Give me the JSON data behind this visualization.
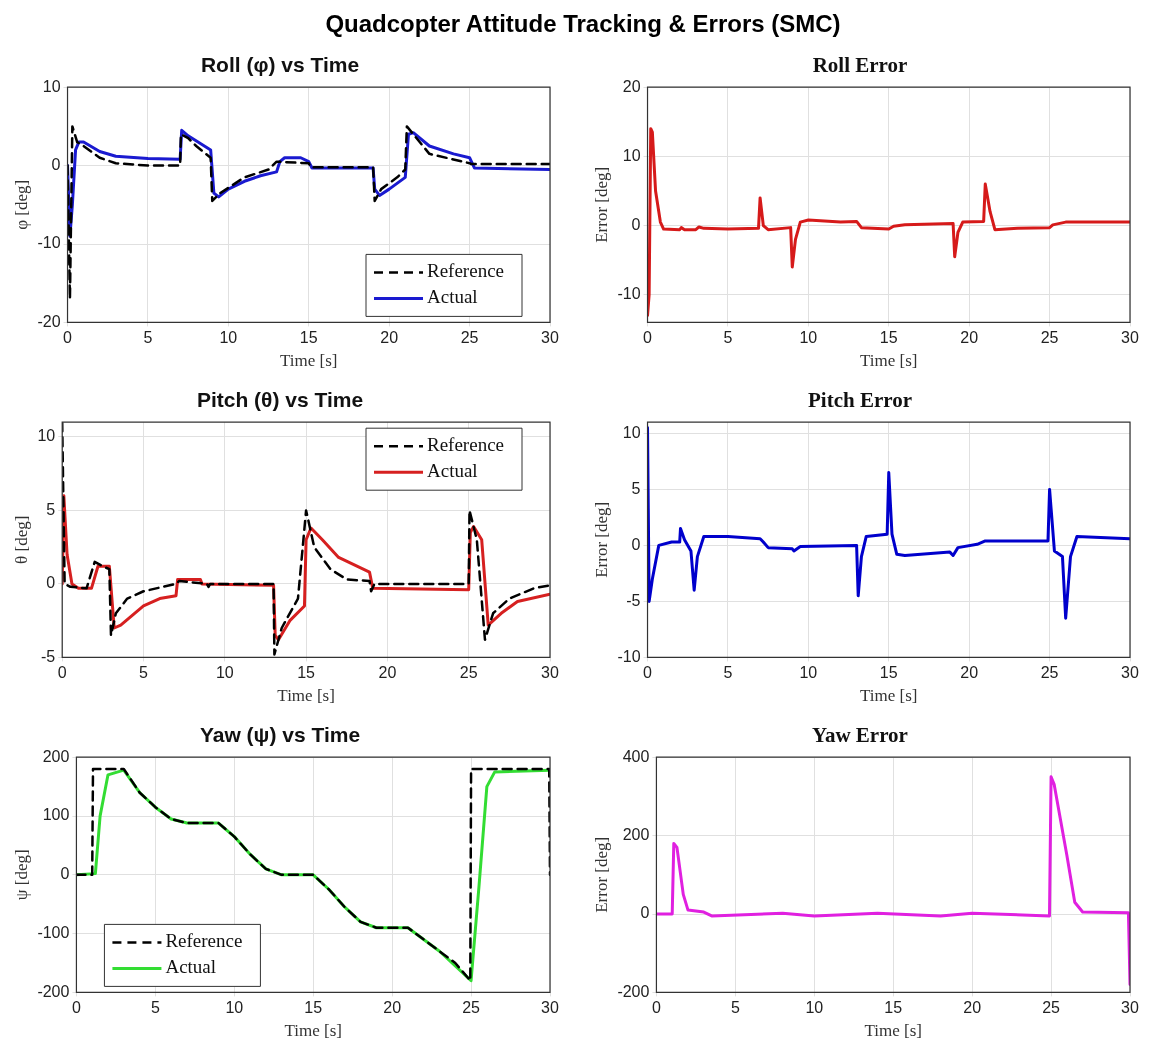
{
  "chart_data": [
    {
      "type": "other",
      "title": "Quadcopter Attitude Tracking & Errors (SMC)"
    },
    {
      "type": "line",
      "title": "Roll (φ) vs Time",
      "xlabel": "Time [s]",
      "ylabel": "φ [deg]",
      "xlim": [
        0,
        30
      ],
      "xticks": [
        0,
        5,
        10,
        15,
        20,
        25,
        30
      ],
      "ylim": [
        -20,
        10
      ],
      "yticks": [
        -20,
        -10,
        0,
        10
      ],
      "grid": true,
      "legend": "bottom right",
      "marker": "none",
      "series": [
        {
          "name": "Reference",
          "color": "#000000",
          "line_style": "dashed",
          "x": [
            0,
            0.15,
            0.3,
            0.6,
            1,
            2,
            3,
            5,
            7,
            7.05,
            7.5,
            8,
            8.9,
            9,
            9.5,
            11,
            12.5,
            13,
            15,
            15.1,
            19,
            19.1,
            19.5,
            20.5,
            21,
            21.1,
            21.5,
            22.5,
            25,
            25.1,
            30
          ],
          "values": [
            0,
            -17,
            5,
            3,
            2.5,
            1,
            0.3,
            0,
            0,
            4,
            3.5,
            2.5,
            1,
            -4.5,
            -3.5,
            -1.5,
            -0.5,
            0.5,
            0.3,
            -0.2,
            -0.2,
            -4.5,
            -3,
            -1.5,
            -0.5,
            5,
            4,
            1.5,
            0.3,
            0.2,
            0.2
          ]
        },
        {
          "name": "Actual",
          "color": "#1a1ad0",
          "line_style": "solid",
          "x": [
            0,
            0.15,
            0.3,
            0.5,
            0.7,
            1,
            2,
            3,
            5,
            7,
            7.1,
            7.5,
            8.9,
            9.1,
            9.4,
            10,
            11,
            12,
            13,
            13.2,
            13.5,
            14.5,
            15,
            15.2,
            19,
            19.1,
            19.4,
            20,
            21,
            21.2,
            21.5,
            22.5,
            24,
            25,
            25.3,
            30
          ],
          "values": [
            0,
            -9,
            -5,
            2,
            3,
            3,
            1.8,
            1.2,
            0.9,
            0.8,
            4.5,
            3.8,
            2,
            -3.5,
            -4,
            -3,
            -2,
            -1.3,
            -0.8,
            0.5,
            1,
            1,
            0.5,
            -0.3,
            -0.3,
            -3,
            -3.8,
            -3,
            -1.5,
            4,
            4.2,
            2.5,
            1.5,
            1,
            -0.3,
            -0.5
          ]
        }
      ]
    },
    {
      "type": "line",
      "title": "Roll Error",
      "xlabel": "Time [s]",
      "ylabel": "Error [deg]",
      "xlim": [
        0,
        30
      ],
      "xticks": [
        0,
        5,
        10,
        15,
        20,
        25,
        30
      ],
      "ylim": [
        -14,
        20
      ],
      "yticks": [
        -10,
        0,
        10,
        20
      ],
      "grid": true,
      "marker": "none",
      "series": [
        {
          "color": "#d61a1a",
          "line_style": "solid",
          "x": [
            0,
            0.1,
            0.2,
            0.3,
            0.5,
            0.8,
            1,
            2,
            2.1,
            2.3,
            3,
            3.2,
            3.5,
            5,
            6.9,
            7,
            7.2,
            7.5,
            8.9,
            9,
            9.2,
            9.5,
            10,
            12,
            13,
            13.3,
            15,
            15.3,
            16,
            19,
            19.1,
            19.3,
            19.6,
            20.9,
            21,
            21.3,
            21.6,
            23,
            25,
            25.2,
            26,
            30
          ],
          "values": [
            -13,
            -10,
            14,
            13.5,
            5,
            0.5,
            -0.5,
            -0.6,
            -0.3,
            -0.6,
            -0.6,
            -0.2,
            -0.4,
            -0.5,
            -0.4,
            4,
            0,
            -0.6,
            -0.3,
            -6,
            -2,
            0.5,
            0.8,
            0.5,
            0.6,
            -0.3,
            -0.5,
            -0.1,
            0.1,
            0.3,
            -4.5,
            -1,
            0.5,
            0.6,
            6,
            2,
            -0.6,
            -0.4,
            -0.3,
            0.1,
            0.5,
            0.5
          ]
        }
      ]
    },
    {
      "type": "line",
      "title": "Pitch (θ) vs Time",
      "xlabel": "Time [s]",
      "ylabel": "θ [deg]",
      "xlim": [
        0,
        30
      ],
      "xticks": [
        0,
        5,
        10,
        15,
        20,
        25,
        30
      ],
      "ylim": [
        -5,
        11
      ],
      "yticks": [
        -5,
        0,
        5,
        10
      ],
      "grid": true,
      "legend": "top right",
      "marker": "none",
      "series": [
        {
          "name": "Reference",
          "color": "#000000",
          "line_style": "dashed",
          "x": [
            0,
            0.15,
            0.5,
            1.5,
            2,
            2.5,
            2.9,
            3,
            3.3,
            4,
            5,
            7,
            7.2,
            8.9,
            9,
            9.1,
            13,
            13.05,
            13.5,
            14.5,
            15,
            15.5,
            16.5,
            17.5,
            18.9,
            19,
            19.2,
            25,
            25.05,
            25.5,
            26,
            26.5,
            27.5,
            29,
            30
          ],
          "values": [
            11,
            0,
            -0.2,
            -0.3,
            1.5,
            1.2,
            1,
            -3.5,
            -2,
            -1,
            -0.5,
            0,
            0.2,
            0,
            -0.2,
            0,
            0,
            -4.8,
            -3,
            -1,
            5,
            2.5,
            1,
            0.3,
            0.2,
            -0.5,
            0,
            0,
            5,
            3,
            -3.8,
            -2,
            -1,
            -0.3,
            -0.1
          ]
        },
        {
          "name": "Actual",
          "color": "#d62020",
          "line_style": "solid",
          "x": [
            0,
            0.1,
            0.3,
            0.6,
            1,
            1.8,
            2.2,
            2.9,
            3.2,
            3.6,
            5,
            6,
            7,
            7.1,
            8.5,
            8.6,
            13,
            13.1,
            13.3,
            14,
            14.9,
            15,
            15.3,
            16,
            17,
            18.9,
            19.1,
            25,
            25.1,
            25.3,
            25.8,
            26.2,
            27,
            28,
            30
          ],
          "values": [
            0,
            6,
            2,
            0,
            -0.3,
            -0.3,
            1.2,
            1.2,
            -3,
            -2.8,
            -1.5,
            -1,
            -0.8,
            0.3,
            0.3,
            0,
            -0.1,
            -3.5,
            -3.8,
            -2.5,
            -1.5,
            3,
            3.8,
            3,
            1.8,
            0.8,
            -0.3,
            -0.4,
            3.5,
            3.9,
            3,
            -2.8,
            -2,
            -1.2,
            -0.7
          ]
        }
      ]
    },
    {
      "type": "line",
      "title": "Pitch Error",
      "xlabel": "Time [s]",
      "ylabel": "Error [deg]",
      "xlim": [
        0,
        30
      ],
      "xticks": [
        0,
        5,
        10,
        15,
        20,
        25,
        30
      ],
      "ylim": [
        -10,
        11
      ],
      "yticks": [
        -10,
        -5,
        0,
        5,
        10
      ],
      "grid": true,
      "marker": "none",
      "series": [
        {
          "color": "#0000cc",
          "line_style": "solid",
          "x": [
            0,
            0.1,
            0.3,
            0.7,
            1.5,
            2,
            2.05,
            2.3,
            2.7,
            2.9,
            3.1,
            3.5,
            5,
            7,
            7.2,
            7.5,
            9,
            9.1,
            9.5,
            13,
            13.1,
            13.3,
            13.6,
            14.9,
            15,
            15.2,
            15.5,
            16,
            18.8,
            19,
            19.3,
            20.5,
            21,
            24.9,
            25,
            25.3,
            25.8,
            26,
            26.3,
            26.7,
            30
          ],
          "values": [
            10.5,
            -5,
            -3,
            0,
            0.3,
            0.3,
            1.5,
            0.5,
            -0.5,
            -4,
            -1,
            0.8,
            0.8,
            0.6,
            0.3,
            -0.2,
            -0.3,
            -0.5,
            -0.1,
            0,
            -4.5,
            -1,
            0.8,
            1,
            6.5,
            1,
            -0.8,
            -0.9,
            -0.6,
            -0.9,
            -0.2,
            0.1,
            0.4,
            0.4,
            5,
            -0.5,
            -1,
            -6.5,
            -1,
            0.8,
            0.6
          ]
        }
      ]
    },
    {
      "type": "line",
      "title": "Yaw (ψ) vs Time",
      "xlabel": "Time [s]",
      "ylabel": "ψ [deg]",
      "xlim": [
        0,
        30
      ],
      "xticks": [
        0,
        5,
        10,
        15,
        20,
        25,
        30
      ],
      "ylim": [
        -200,
        200
      ],
      "yticks": [
        -200,
        -100,
        0,
        100,
        200
      ],
      "grid": true,
      "legend": "bottom left",
      "marker": "none",
      "series": [
        {
          "name": "Reference",
          "color": "#000000",
          "line_style": "dashed",
          "x": [
            0,
            1,
            1.05,
            3,
            4,
            5,
            6,
            7,
            9,
            10,
            11,
            12,
            13,
            15,
            16,
            17,
            18,
            19,
            21,
            22,
            23,
            24,
            24.95,
            25,
            29.95,
            30
          ],
          "values": [
            0,
            0,
            180,
            180,
            140,
            115,
            95,
            88,
            88,
            65,
            35,
            10,
            0,
            0,
            -25,
            -55,
            -80,
            -90,
            -90,
            -110,
            -130,
            -150,
            -180,
            180,
            180,
            0
          ]
        },
        {
          "name": "Actual",
          "color": "#33dd33",
          "line_style": "solid",
          "x": [
            0,
            1.2,
            1.5,
            2,
            3,
            4,
            5,
            6,
            7,
            9,
            10,
            11,
            12,
            13,
            15,
            16,
            17,
            18,
            19,
            21,
            22,
            23,
            24,
            25,
            25.5,
            26,
            26.5,
            30
          ],
          "values": [
            0,
            2,
            100,
            170,
            178,
            140,
            115,
            95,
            88,
            88,
            65,
            35,
            10,
            0,
            0,
            -25,
            -55,
            -80,
            -90,
            -90,
            -110,
            -130,
            -155,
            -180,
            -20,
            150,
            175,
            178
          ]
        }
      ]
    },
    {
      "type": "line",
      "title": "Yaw Error",
      "xlabel": "Time [s]",
      "ylabel": "Error [deg]",
      "xlim": [
        0,
        30
      ],
      "xticks": [
        0,
        5,
        10,
        15,
        20,
        25,
        30
      ],
      "ylim": [
        -200,
        400
      ],
      "yticks": [
        -200,
        0,
        200,
        400
      ],
      "grid": true,
      "marker": "none",
      "series": [
        {
          "color": "#e020e0",
          "line_style": "solid",
          "x": [
            0,
            1,
            1.1,
            1.3,
            1.7,
            2,
            3,
            3.5,
            8,
            10,
            14,
            18,
            20,
            24.9,
            25,
            25.2,
            26,
            26.5,
            27,
            29.9,
            30
          ],
          "values": [
            0,
            0,
            180,
            170,
            50,
            10,
            5,
            -5,
            2,
            -5,
            2,
            -5,
            2,
            -5,
            350,
            330,
            150,
            30,
            5,
            3,
            -180
          ]
        }
      ]
    }
  ]
}
